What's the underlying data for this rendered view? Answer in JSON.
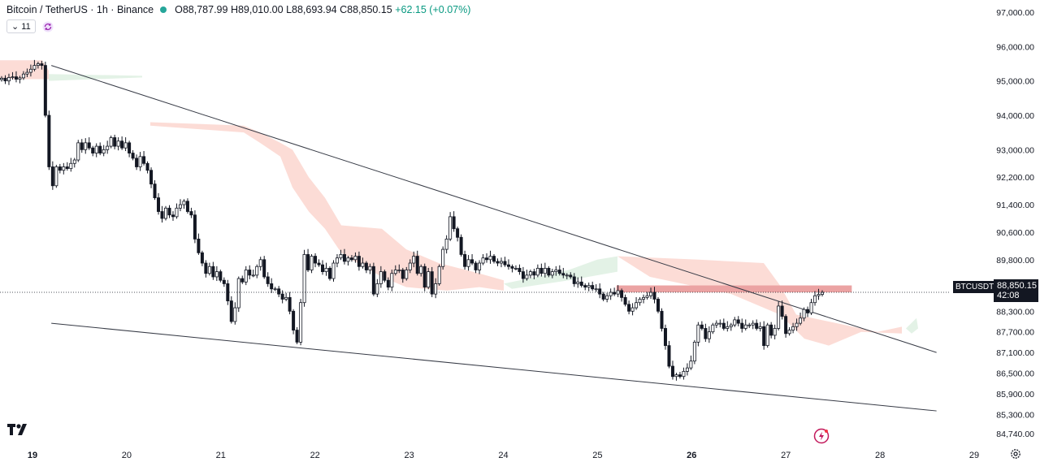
{
  "header": {
    "symbol": "Bitcoin / TetherUS · 1h · Binance",
    "open": "O88,787.99",
    "high": "H89,010.00",
    "low": "L88,693.94",
    "close": "C88,850.15",
    "change": "+62.15 (+0.07%)",
    "indicator_count": "11"
  },
  "price_label": {
    "symbol_tag": "BTCUSDT",
    "price": "88,850.15",
    "countdown": "42:08"
  },
  "colors": {
    "up": "#131722",
    "down": "#131722",
    "cloud_bear": "#fcdcd6",
    "cloud_bull": "#e3f2e6",
    "resistance_zone": "#eba3a3"
  },
  "chart_data": {
    "type": "candlestick",
    "x_ticks": [
      "19",
      "20",
      "21",
      "22",
      "23",
      "24",
      "25",
      "26",
      "27",
      "28",
      "29"
    ],
    "x_ticks_bold": [
      "19",
      "26"
    ],
    "y_ticks": [
      "97,000.00",
      "96,000.00",
      "95,000.00",
      "94,000.00",
      "93,000.00",
      "92,200.00",
      "91,400.00",
      "90,600.00",
      "89,800.00",
      "89,050.00",
      "88,300.00",
      "87,700.00",
      "87,100.00",
      "86,500.00",
      "85,900.00",
      "85,300.00",
      "84,740.00"
    ],
    "y_range": [
      84500,
      97300
    ],
    "last_price": 88850.15,
    "trendlines": [
      {
        "from": {
          "day": 19.2,
          "price": 95450
        },
        "to": {
          "day": 28.6,
          "price": 87100
        }
      },
      {
        "from": {
          "day": 19.2,
          "price": 87950
        },
        "to": {
          "day": 28.6,
          "price": 85400
        }
      }
    ],
    "resistance_zone": {
      "day_start": 25.2,
      "day_end": 27.7,
      "price_low": 88850,
      "price_high": 89050
    },
    "closes": [
      95080,
      95000,
      95100,
      95120,
      95050,
      95090,
      95200,
      95250,
      95340,
      95450,
      95500,
      95450,
      94000,
      92500,
      91950,
      92500,
      92400,
      92500,
      92450,
      92600,
      92700,
      93200,
      93000,
      93200,
      93050,
      92900,
      93100,
      92900,
      93000,
      93100,
      93350,
      93100,
      93250,
      93050,
      93200,
      92900,
      92750,
      92500,
      92800,
      92600,
      92400,
      92000,
      91600,
      91200,
      91000,
      91300,
      91100,
      91050,
      91300,
      91400,
      91500,
      91200,
      91100,
      90400,
      90000,
      89700,
      89400,
      89600,
      89300,
      89450,
      89200,
      89100,
      88600,
      88000,
      88400,
      89250,
      89150,
      89500,
      89350,
      89350,
      89600,
      89800,
      89300,
      89100,
      88950,
      88950,
      88800,
      88650,
      88700,
      88300,
      87750,
      87400,
      88550,
      89950,
      89500,
      89900,
      89700,
      89650,
      89450,
      89550,
      89250,
      89700,
      89850,
      89950,
      89750,
      89850,
      89800,
      89900,
      89600,
      89700,
      89500,
      89600,
      88800,
      89100,
      89450,
      89200,
      89000,
      89400,
      89500,
      89500,
      89250,
      89500,
      89700,
      89900,
      89400,
      89600,
      89000,
      89450,
      88800,
      89100,
      89600,
      90100,
      90400,
      91050,
      90700,
      90450,
      89950,
      89600,
      89800,
      89700,
      89500,
      89700,
      89850,
      89800,
      89900,
      89750,
      89700,
      89750,
      89650,
      89600,
      89550,
      89550,
      89450,
      89250,
      89350,
      89450,
      89350,
      89550,
      89400,
      89550,
      89350,
      89450,
      89500,
      89400,
      89350,
      89350,
      89300,
      89100,
      89150,
      89050,
      89000,
      89050,
      88950,
      88950,
      88800,
      88650,
      88750,
      88850,
      88800,
      88900,
      88700,
      88500,
      88300,
      88400,
      88550,
      88650,
      88700,
      88750,
      88850,
      88650,
      88300,
      87800,
      87300,
      86700,
      86400,
      86450,
      86400,
      86550,
      86650,
      86850,
      87400,
      87900,
      87800,
      87500,
      87700,
      87900,
      87950,
      87950,
      87800,
      87850,
      87900,
      88050,
      87950,
      87800,
      87900,
      87900,
      87950,
      87800,
      87850,
      87300,
      87900,
      87600,
      87800,
      88450,
      88150,
      87650,
      87750,
      87850,
      87950,
      88100,
      88350,
      88250,
      88550,
      88750,
      88790,
      88850
    ]
  }
}
